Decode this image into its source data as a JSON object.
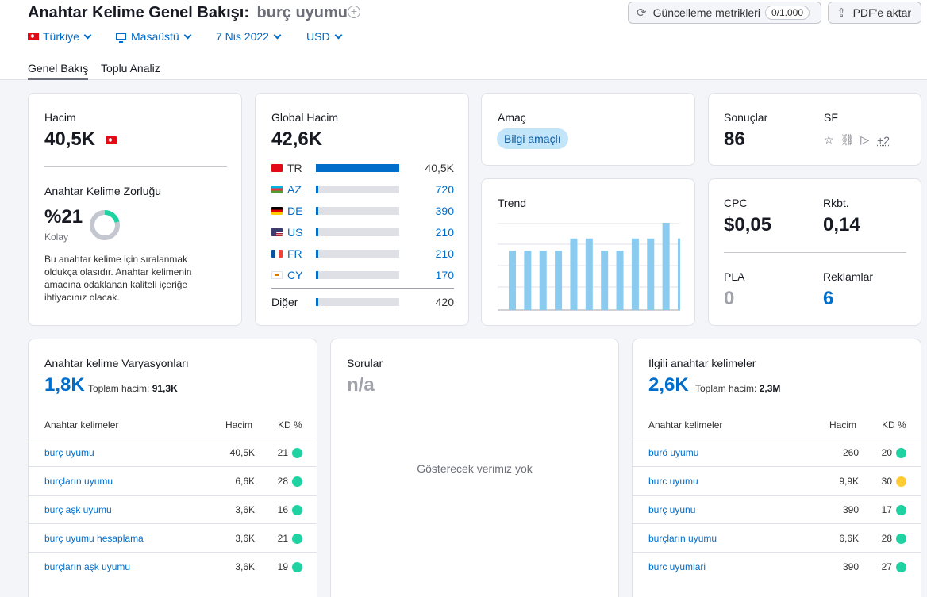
{
  "header": {
    "title": "Anahtar Kelime Genel Bakışı:",
    "keyword": "burç uyumu",
    "update_button": "Güncelleme metrikleri",
    "update_count": "0/1.000",
    "export_button": "PDF'e aktar"
  },
  "filters": {
    "country": "Türkiye",
    "device": "Masaüstü",
    "date": "7 Nis 2022",
    "currency": "USD"
  },
  "tabs": [
    "Genel Bakış",
    "Toplu Analiz"
  ],
  "volume_card": {
    "label": "Hacim",
    "value": "40,5K",
    "kd_label": "Anahtar Kelime Zorluğu",
    "kd_value": "%21",
    "kd_percent": 21,
    "kd_level": "Kolay",
    "kd_note": "Bu anahtar kelime için sıralanmak oldukça olasıdır. Anahtar kelimenin amacına odaklanan kaliteli içeriğe ihtiyacınız olacak.",
    "colors": {
      "kd_fill": "#1ed3a1",
      "kd_track": "#c4c7cf"
    }
  },
  "global_volume": {
    "label": "Global Hacim",
    "value": "42,6K",
    "countries": [
      {
        "code": "TR",
        "value": "40,5K",
        "share": 1.0
      },
      {
        "code": "AZ",
        "value": "720",
        "share": 0.018
      },
      {
        "code": "DE",
        "value": "390",
        "share": 0.01
      },
      {
        "code": "US",
        "value": "210",
        "share": 0.005
      },
      {
        "code": "FR",
        "value": "210",
        "share": 0.005
      },
      {
        "code": "CY",
        "value": "170",
        "share": 0.004
      }
    ],
    "other": {
      "label": "Diğer",
      "value": "420",
      "share": 0.01
    }
  },
  "intent": {
    "label": "Amaç",
    "badge": "Bilgi amaçlı"
  },
  "trend": {
    "label": "Trend",
    "values": [
      0.68,
      0.68,
      0.68,
      0.68,
      0.82,
      0.82,
      0.68,
      0.68,
      0.82,
      0.82,
      1.0,
      0.82
    ]
  },
  "results": {
    "label": "Sonuçlar",
    "value": "86",
    "sf_label": "SF",
    "sf_more": "+2"
  },
  "cpc_card": {
    "cpc_label": "CPC",
    "cpc_value": "$0,05",
    "comp_label": "Rkbt.",
    "comp_value": "0,14",
    "pla_label": "PLA",
    "pla_value": "0",
    "ads_label": "Reklamlar",
    "ads_value": "6"
  },
  "variations": {
    "title": "Anahtar kelime Varyasyonları",
    "count": "1,8K",
    "total_label": "Toplam hacim:",
    "total_value": "91,3K",
    "col_keyword": "Anahtar kelimeler",
    "col_volume": "Hacim",
    "col_kd": "KD %",
    "rows": [
      {
        "keyword": "burç uyumu",
        "volume": "40,5K",
        "kd": "21",
        "color": "#1ed3a1"
      },
      {
        "keyword": "burçların uyumu",
        "volume": "6,6K",
        "kd": "28",
        "color": "#1ed3a1"
      },
      {
        "keyword": "burç aşk uyumu",
        "volume": "3,6K",
        "kd": "16",
        "color": "#1ed3a1"
      },
      {
        "keyword": "burç uyumu hesaplama",
        "volume": "3,6K",
        "kd": "21",
        "color": "#1ed3a1"
      },
      {
        "keyword": "burçların aşk uyumu",
        "volume": "3,6K",
        "kd": "19",
        "color": "#1ed3a1"
      }
    ]
  },
  "questions": {
    "title": "Sorular",
    "value": "n/a",
    "empty_text": "Gösterecek verimiz yok"
  },
  "related": {
    "title": "İlgili anahtar kelimeler",
    "count": "2,6K",
    "total_label": "Toplam hacim:",
    "total_value": "2,3M",
    "col_keyword": "Anahtar kelimeler",
    "col_volume": "Hacim",
    "col_kd": "KD %",
    "rows": [
      {
        "keyword": "burö uyumu",
        "volume": "260",
        "kd": "20",
        "color": "#1ed3a1"
      },
      {
        "keyword": "burc uyumu",
        "volume": "9,9K",
        "kd": "30",
        "color": "#ffcc33"
      },
      {
        "keyword": "burç uyunu",
        "volume": "390",
        "kd": "17",
        "color": "#1ed3a1"
      },
      {
        "keyword": "burçların uyumu",
        "volume": "6,6K",
        "kd": "28",
        "color": "#1ed3a1"
      },
      {
        "keyword": "burc uyumlari",
        "volume": "390",
        "kd": "27",
        "color": "#1ed3a1"
      }
    ]
  },
  "colors": {
    "accent": "#006dca",
    "trend_bar": "#8bcbf0"
  }
}
